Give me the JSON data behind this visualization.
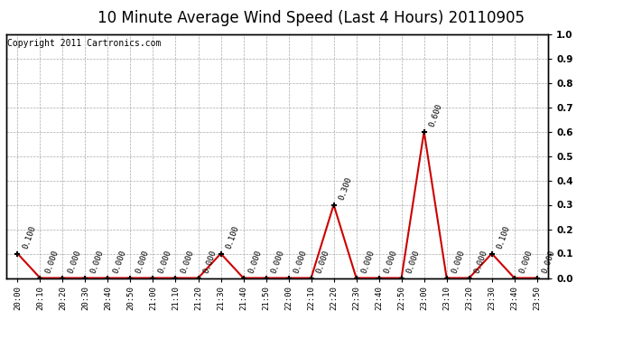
{
  "title": "10 Minute Average Wind Speed (Last 4 Hours) 20110905",
  "copyright": "Copyright 2011 Cartronics.com",
  "x_labels": [
    "20:00",
    "20:10",
    "20:20",
    "20:30",
    "20:40",
    "20:50",
    "21:00",
    "21:10",
    "21:20",
    "21:30",
    "21:40",
    "21:50",
    "22:00",
    "22:10",
    "22:20",
    "22:30",
    "22:40",
    "22:50",
    "23:00",
    "23:10",
    "23:20",
    "23:30",
    "23:40",
    "23:50"
  ],
  "y_values": [
    0.1,
    0.0,
    0.0,
    0.0,
    0.0,
    0.0,
    0.0,
    0.0,
    0.0,
    0.1,
    0.0,
    0.0,
    0.0,
    0.0,
    0.3,
    0.0,
    0.0,
    0.0,
    0.6,
    0.0,
    0.0,
    0.1,
    0.0,
    0.0
  ],
  "line_color": "#cc0000",
  "marker": "+",
  "marker_color": "#000000",
  "marker_size": 5,
  "ylim": [
    0.0,
    1.0
  ],
  "ytick_positions": [
    0.0,
    0.1,
    0.2,
    0.3,
    0.4,
    0.5,
    0.6,
    0.7,
    0.8,
    0.9,
    1.0
  ],
  "grid_color": "#aaaaaa",
  "bg_color": "#ffffff",
  "title_fontsize": 12,
  "copyright_fontsize": 7,
  "annotation_fontsize": 6.5,
  "annotation_rotation": 70
}
